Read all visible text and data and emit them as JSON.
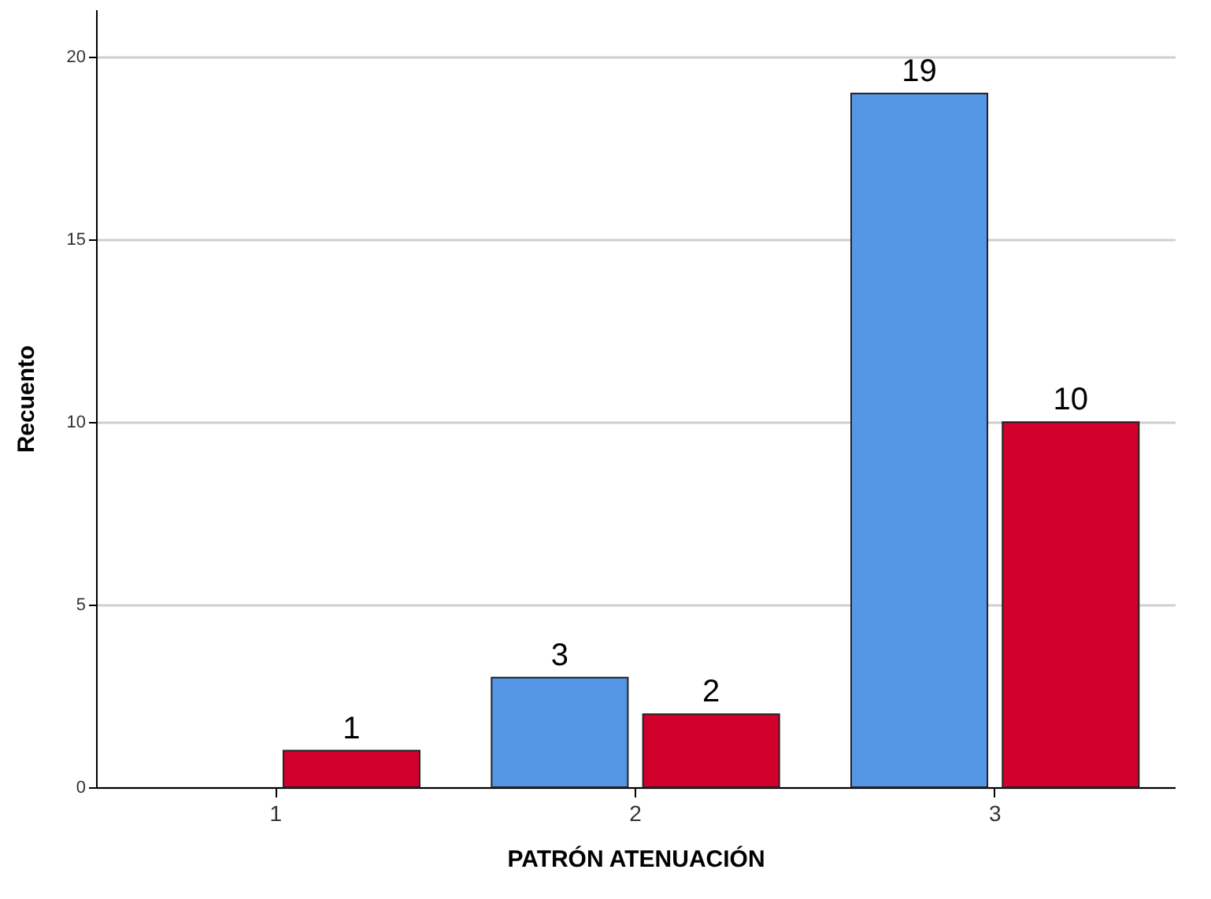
{
  "chart_data": {
    "type": "bar",
    "xlabel": "PATRÓN ATENUACIÓN",
    "ylabel": "Recuento",
    "categories": [
      "1",
      "2",
      "3"
    ],
    "series": [
      {
        "color": "#5596e6",
        "values": [
          0,
          3,
          19
        ],
        "value_labels": [
          null,
          "3",
          "19"
        ]
      },
      {
        "color": "#d2002c",
        "values": [
          1,
          2,
          10
        ],
        "value_labels": [
          "1",
          "2",
          "10"
        ]
      }
    ],
    "ylim": [
      0,
      21.3
    ],
    "yticks": [
      0,
      5,
      10,
      15,
      20
    ],
    "grid": "y",
    "legend": false
  }
}
